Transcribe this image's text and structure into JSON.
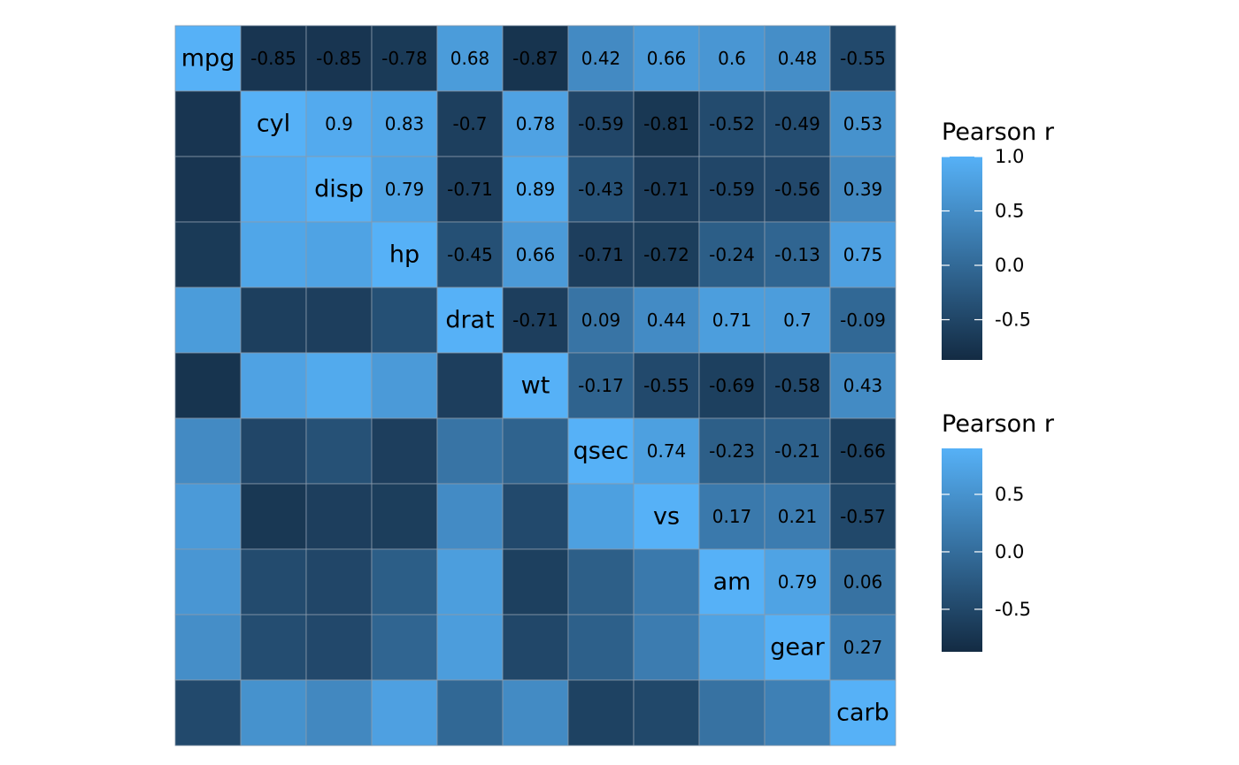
{
  "chart_data": {
    "type": "heatmap",
    "variables": [
      "mpg",
      "cyl",
      "disp",
      "hp",
      "drat",
      "wt",
      "qsec",
      "vs",
      "am",
      "gear",
      "carb"
    ],
    "matrix": [
      [
        1,
        -0.85,
        -0.85,
        -0.78,
        0.68,
        -0.87,
        0.42,
        0.66,
        0.6,
        0.48,
        -0.55
      ],
      [
        -0.85,
        1,
        0.9,
        0.83,
        -0.7,
        0.78,
        -0.59,
        -0.81,
        -0.52,
        -0.49,
        0.53
      ],
      [
        -0.85,
        0.9,
        1,
        0.79,
        -0.71,
        0.89,
        -0.43,
        -0.71,
        -0.59,
        -0.56,
        0.39
      ],
      [
        -0.78,
        0.83,
        0.79,
        1,
        -0.45,
        0.66,
        -0.71,
        -0.72,
        -0.24,
        -0.13,
        0.75
      ],
      [
        0.68,
        -0.7,
        -0.71,
        -0.45,
        1,
        -0.71,
        0.09,
        0.44,
        0.71,
        0.7,
        -0.09
      ],
      [
        -0.87,
        0.78,
        0.89,
        0.66,
        -0.71,
        1,
        -0.17,
        -0.55,
        -0.69,
        -0.58,
        0.43
      ],
      [
        0.42,
        -0.59,
        -0.43,
        -0.71,
        0.09,
        -0.17,
        1,
        0.74,
        -0.23,
        -0.21,
        -0.66
      ],
      [
        0.66,
        -0.81,
        -0.71,
        -0.72,
        0.44,
        -0.55,
        0.74,
        1,
        0.17,
        0.21,
        -0.57
      ],
      [
        0.6,
        -0.52,
        -0.59,
        -0.24,
        0.71,
        -0.69,
        -0.23,
        0.17,
        1,
        0.79,
        0.06
      ],
      [
        0.48,
        -0.49,
        -0.56,
        -0.13,
        0.7,
        -0.58,
        -0.21,
        0.21,
        0.79,
        1,
        0.27
      ],
      [
        -0.55,
        0.53,
        0.39,
        0.75,
        -0.09,
        0.43,
        -0.66,
        -0.57,
        0.06,
        0.27,
        1
      ]
    ],
    "upper_triangle": "value labels",
    "diagonal": "variable names",
    "lower_triangle": "color only",
    "color_low": "#132B43",
    "color_high": "#56B1F7",
    "legends": [
      {
        "title": "Pearson r",
        "ticks": [
          "1.0",
          "0.5",
          "0.0",
          "-0.5"
        ],
        "tick_values": [
          1.0,
          0.5,
          0.0,
          -0.5
        ],
        "range": [
          -0.87,
          1.0
        ]
      },
      {
        "title": "Pearson r",
        "ticks": [
          "0.5",
          "0.0",
          "-0.5"
        ],
        "tick_values": [
          0.5,
          0.0,
          -0.5
        ],
        "range": [
          -0.87,
          0.9
        ]
      }
    ],
    "legend_position": "right"
  }
}
